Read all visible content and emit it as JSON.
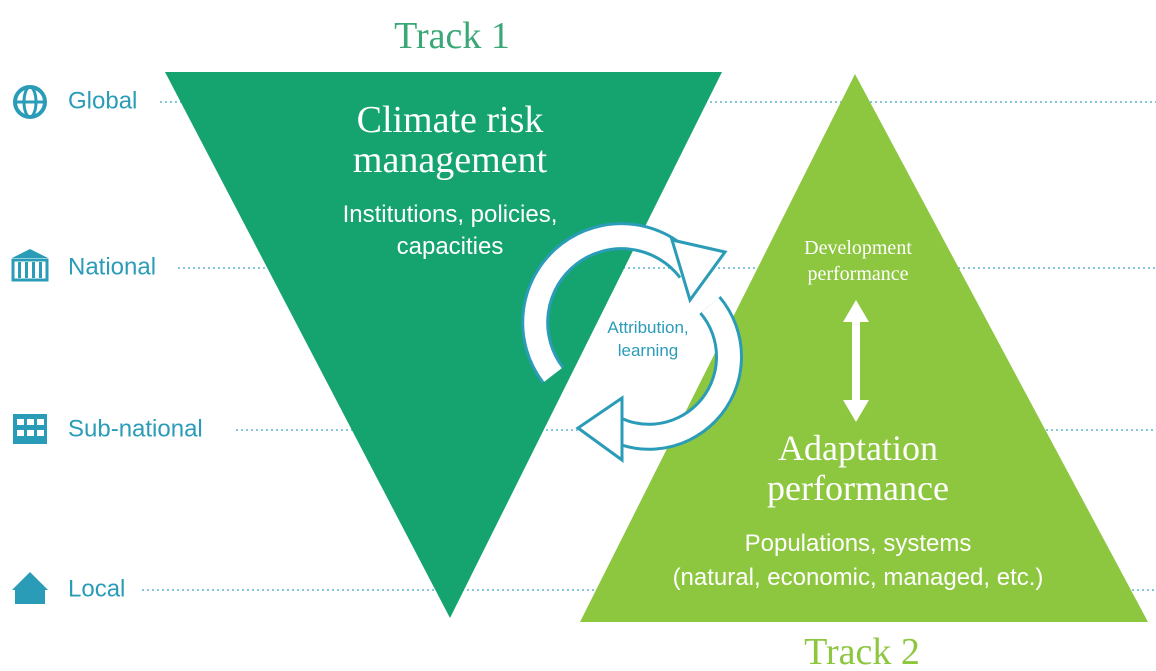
{
  "tracks": [
    "Track 1",
    "Track 2"
  ],
  "levels": [
    "Global",
    "National",
    "Sub-national",
    "Local"
  ],
  "track1": {
    "title": [
      "Climate risk",
      "management"
    ],
    "subtitle": [
      "Institutions, policies,",
      "capacities"
    ]
  },
  "cycle": {
    "label": [
      "Attribution,",
      "learning"
    ]
  },
  "track2": {
    "top": [
      "Development",
      "performance"
    ],
    "title": [
      "Adaptation",
      "performance"
    ],
    "subtitle": [
      "Populations, systems",
      "(natural, economic, managed, etc.)"
    ]
  }
}
